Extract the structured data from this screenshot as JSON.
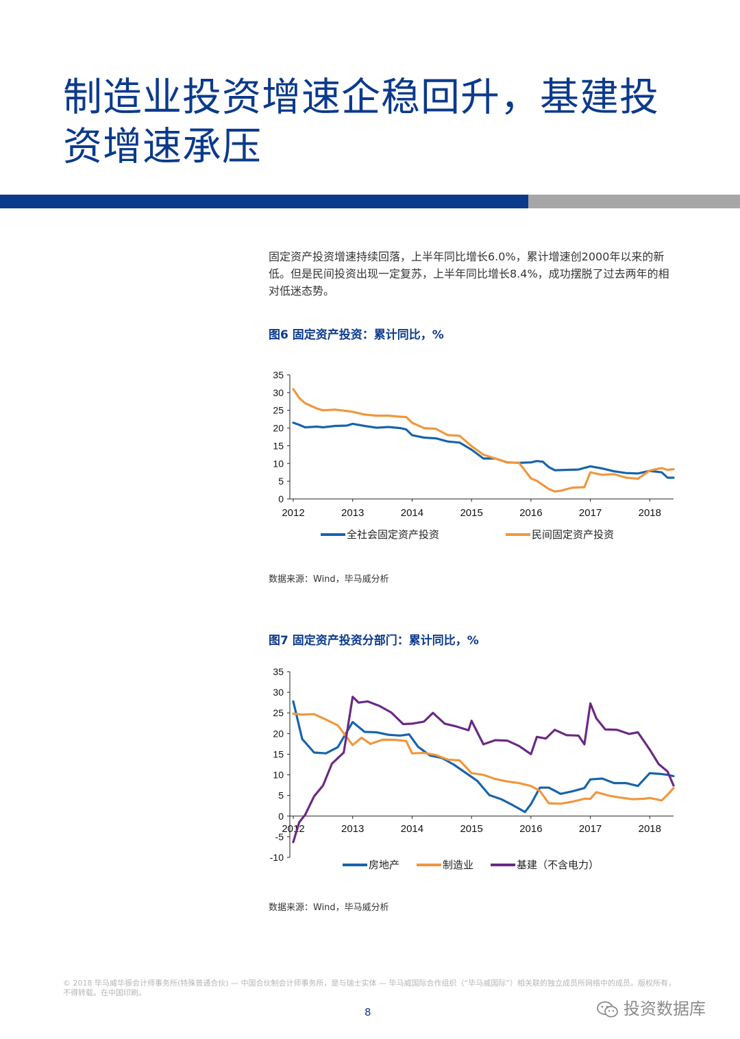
{
  "title": "制造业投资增速企稳回升，基建投资增速承压",
  "intro": "固定资产投资增速持续回落，上半年同比增长6.0%，累计增速创2000年以来的新低。但是民间投资出现一定复苏，上半年同比增长8.4%，成功摆脱了过去两年的相对低迷态势。",
  "colors": {
    "accent": "#0b3a8c",
    "blue": "#1764ab",
    "orange": "#f0963c",
    "purple": "#6a2a84",
    "grey": "#a6a6a6"
  },
  "chart_data": [
    {
      "type": "line",
      "title": "图6 固定资产投资：累计同比，%",
      "source": "数据来源：Wind，毕马威分析",
      "ylim": [
        0,
        35
      ],
      "yticks": [
        0,
        5,
        10,
        15,
        20,
        25,
        30,
        35
      ],
      "xlim": [
        2012,
        2018.4
      ],
      "xticks": [
        2012,
        2013,
        2014,
        2015,
        2016,
        2017,
        2018
      ],
      "series": [
        {
          "name": "全社会固定资产投资",
          "x": [
            2012,
            2012.1,
            2012.2,
            2012.4,
            2012.5,
            2012.7,
            2012.9,
            2013,
            2013.2,
            2013.4,
            2013.6,
            2013.8,
            2013.9,
            2014,
            2014.2,
            2014.4,
            2014.6,
            2014.8,
            2015,
            2015.2,
            2015.4,
            2015.6,
            2015.8,
            2016,
            2016.1,
            2016.2,
            2016.3,
            2016.4,
            2016.6,
            2016.8,
            2017,
            2017.2,
            2017.4,
            2017.6,
            2017.8,
            2018,
            2018.2,
            2018.3,
            2018.4
          ],
          "values": [
            21.5,
            20.9,
            20.2,
            20.4,
            20.2,
            20.6,
            20.7,
            21.2,
            20.6,
            20.1,
            20.3,
            20.0,
            19.6,
            18.0,
            17.3,
            17.1,
            16.2,
            15.9,
            13.9,
            11.4,
            11.4,
            10.3,
            10.2,
            10.3,
            10.7,
            10.5,
            9.0,
            8.1,
            8.2,
            8.3,
            9.2,
            8.6,
            7.8,
            7.3,
            7.2,
            7.9,
            7.5,
            6.0,
            6.0
          ]
        },
        {
          "name": "民间固定资产投资",
          "x": [
            2012,
            2012.1,
            2012.2,
            2012.4,
            2012.5,
            2012.7,
            2012.9,
            2013,
            2013.2,
            2013.4,
            2013.6,
            2013.8,
            2013.9,
            2014,
            2014.2,
            2014.4,
            2014.6,
            2014.8,
            2015,
            2015.2,
            2015.4,
            2015.6,
            2015.8,
            2016,
            2016.1,
            2016.3,
            2016.4,
            2016.5,
            2016.7,
            2016.9,
            2017,
            2017.2,
            2017.4,
            2017.6,
            2017.8,
            2018,
            2018.2,
            2018.3,
            2018.4
          ],
          "values": [
            31.0,
            28.5,
            27.0,
            25.5,
            25.0,
            25.2,
            24.8,
            24.6,
            23.8,
            23.5,
            23.5,
            23.2,
            23.1,
            21.5,
            20.0,
            19.8,
            18.0,
            17.8,
            14.9,
            12.5,
            11.4,
            10.3,
            10.2,
            5.8,
            5.1,
            2.8,
            2.1,
            2.3,
            3.2,
            3.3,
            7.5,
            6.8,
            7.0,
            6.0,
            5.7,
            8.0,
            8.7,
            8.2,
            8.4
          ]
        }
      ]
    },
    {
      "type": "line",
      "title": "图7 固定资产投资分部门：累计同比，%",
      "source": "数据来源：Wind，毕马威分析",
      "ylim": [
        -10,
        35
      ],
      "yticks": [
        -10,
        -5,
        0,
        5,
        10,
        15,
        20,
        25,
        30,
        35
      ],
      "xlim": [
        2012,
        2018.4
      ],
      "xticks": [
        2012,
        2013,
        2014,
        2015,
        2016,
        2017,
        2018
      ],
      "series": [
        {
          "name": "房地产",
          "x": [
            2012,
            2012.15,
            2012.35,
            2012.55,
            2012.75,
            2013,
            2013.2,
            2013.4,
            2013.6,
            2013.8,
            2013.95,
            2014.1,
            2014.3,
            2014.5,
            2014.7,
            2014.9,
            2015.1,
            2015.3,
            2015.5,
            2015.7,
            2015.9,
            2016,
            2016.15,
            2016.3,
            2016.5,
            2016.7,
            2016.9,
            2017,
            2017.2,
            2017.4,
            2017.6,
            2017.8,
            2018,
            2018.2,
            2018.3,
            2018.4
          ],
          "values": [
            27.8,
            18.7,
            15.4,
            15.2,
            16.7,
            22.8,
            20.4,
            20.3,
            19.7,
            19.5,
            19.8,
            16.8,
            14.7,
            14.1,
            12.5,
            10.5,
            8.5,
            5.1,
            4.1,
            2.6,
            1.0,
            2.9,
            6.9,
            6.9,
            5.4,
            6.0,
            6.8,
            8.9,
            9.1,
            8.0,
            8.0,
            7.3,
            10.4,
            10.2,
            10.0,
            9.7
          ]
        },
        {
          "name": "制造业",
          "x": [
            2012,
            2012.15,
            2012.35,
            2012.55,
            2012.75,
            2013,
            2013.15,
            2013.3,
            2013.5,
            2013.7,
            2013.9,
            2014,
            2014.2,
            2014.4,
            2014.6,
            2014.8,
            2015,
            2015.2,
            2015.4,
            2015.6,
            2015.8,
            2016,
            2016.15,
            2016.3,
            2016.5,
            2016.7,
            2016.9,
            2017,
            2017.1,
            2017.3,
            2017.5,
            2017.7,
            2017.9,
            2018,
            2018.2,
            2018.3,
            2018.4
          ],
          "values": [
            24.8,
            24.6,
            24.7,
            23.4,
            22.0,
            17.2,
            19.0,
            17.5,
            18.5,
            18.5,
            18.2,
            15.2,
            15.3,
            14.8,
            13.7,
            13.5,
            10.4,
            10.0,
            9.0,
            8.4,
            8.0,
            7.3,
            6.1,
            3.1,
            3.0,
            3.5,
            4.2,
            4.2,
            5.8,
            5.0,
            4.5,
            4.1,
            4.2,
            4.4,
            3.8,
            5.2,
            6.8
          ]
        },
        {
          "name": "基建（不含电力）",
          "x": [
            2012,
            2012.1,
            2012.2,
            2012.35,
            2012.5,
            2012.65,
            2012.85,
            2013,
            2013.1,
            2013.25,
            2013.45,
            2013.65,
            2013.85,
            2014,
            2014.2,
            2014.35,
            2014.55,
            2014.75,
            2014.95,
            2015,
            2015.2,
            2015.4,
            2015.6,
            2015.8,
            2016,
            2016.1,
            2016.25,
            2016.4,
            2016.6,
            2016.8,
            2016.9,
            2017,
            2017.1,
            2017.25,
            2017.45,
            2017.65,
            2017.8,
            2018,
            2018.15,
            2018.3,
            2018.4
          ],
          "values": [
            -6.3,
            -1.5,
            0.3,
            4.8,
            7.4,
            12.7,
            15.4,
            28.9,
            27.5,
            27.8,
            26.7,
            25.1,
            22.3,
            22.4,
            22.9,
            25.0,
            22.4,
            21.7,
            20.8,
            23.1,
            17.4,
            18.4,
            18.3,
            17.0,
            15.0,
            19.2,
            18.8,
            20.9,
            19.6,
            19.5,
            17.4,
            27.3,
            23.7,
            21.0,
            20.9,
            19.9,
            20.3,
            16.1,
            12.6,
            10.8,
            7.4
          ]
        }
      ]
    }
  ],
  "footer": "© 2018 毕马威华振会计师事务所(特殊普通合伙) — 中国合伙制会计师事务所，是与瑞士实体 — 毕马威国际合作组织（“毕马威国际”）相关联的独立成员所网络中的成员。版权所有，不得转载。在中国印刷。",
  "page_number": "8",
  "watermark": "投资数据库"
}
